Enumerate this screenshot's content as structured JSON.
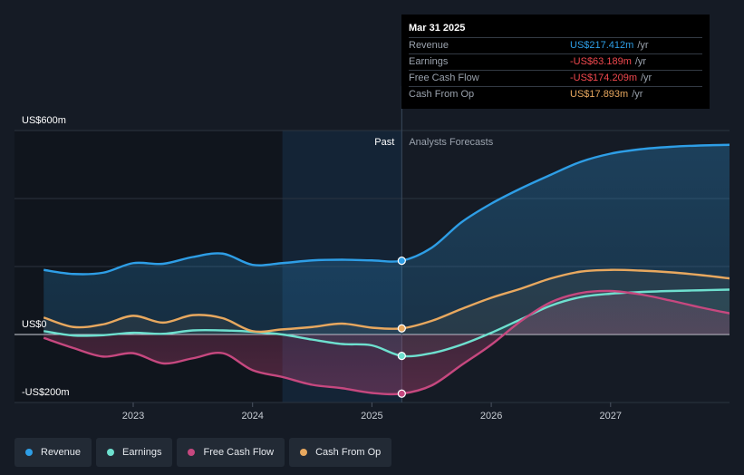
{
  "tooltip": {
    "date": "Mar 31 2025",
    "rows": [
      {
        "label": "Revenue",
        "value": "US$217.412m",
        "unit": "/yr",
        "color": "#2e9ee6"
      },
      {
        "label": "Earnings",
        "value": "-US$63.189m",
        "unit": "/yr",
        "color": "#f0484e"
      },
      {
        "label": "Free Cash Flow",
        "value": "-US$174.209m",
        "unit": "/yr",
        "color": "#f0484e"
      },
      {
        "label": "Cash From Op",
        "value": "US$17.893m",
        "unit": "/yr",
        "color": "#e8a85f"
      }
    ]
  },
  "legend": [
    {
      "label": "Revenue",
      "color": "#2e9ee6"
    },
    {
      "label": "Earnings",
      "color": "#6ee0cf"
    },
    {
      "label": "Free Cash Flow",
      "color": "#c6487f"
    },
    {
      "label": "Cash From Op",
      "color": "#e8a85f"
    }
  ],
  "chart_data": {
    "type": "line",
    "title": "",
    "xlabel": "",
    "ylabel": "",
    "y_tick_labels": [
      {
        "value": 600,
        "label": "US$600m"
      },
      {
        "value": 0,
        "label": "US$0"
      },
      {
        "value": -200,
        "label": "-US$200m"
      }
    ],
    "x_tick_labels": [
      {
        "value": 2023,
        "label": "2023"
      },
      {
        "value": 2024,
        "label": "2024"
      },
      {
        "value": 2025,
        "label": "2025"
      },
      {
        "value": 2026,
        "label": "2026"
      },
      {
        "value": 2027,
        "label": "2027"
      }
    ],
    "xlim": [
      2022.0,
      2028.0
    ],
    "ylim": [
      -200,
      600
    ],
    "gridlines_y": [
      600,
      400,
      200,
      0,
      -200
    ],
    "divider_x": 2025.25,
    "past_label": "Past",
    "forecast_label": "Analysts Forecasts",
    "highlight_start_x": 2024.25,
    "series": [
      {
        "name": "Revenue",
        "color": "#2e9ee6",
        "x": [
          2022.25,
          2022.5,
          2022.75,
          2023.0,
          2023.25,
          2023.5,
          2023.75,
          2024.0,
          2024.25,
          2024.5,
          2024.75,
          2025.0,
          2025.25,
          2025.5,
          2025.75,
          2026.0,
          2026.25,
          2026.5,
          2026.75,
          2027.0,
          2027.25,
          2027.5,
          2027.75,
          2028.0
        ],
        "values": [
          190,
          178,
          182,
          210,
          208,
          228,
          238,
          205,
          210,
          218,
          220,
          218,
          217,
          255,
          330,
          385,
          430,
          470,
          508,
          532,
          545,
          552,
          556,
          558
        ]
      },
      {
        "name": "Earnings",
        "color": "#6ee0cf",
        "x": [
          2022.25,
          2022.5,
          2022.75,
          2023.0,
          2023.25,
          2023.5,
          2023.75,
          2024.0,
          2024.25,
          2024.5,
          2024.75,
          2025.0,
          2025.25,
          2025.5,
          2025.75,
          2026.0,
          2026.25,
          2026.5,
          2026.75,
          2027.0,
          2027.25,
          2027.5,
          2027.75,
          2028.0
        ],
        "values": [
          10,
          -3,
          -2,
          5,
          2,
          12,
          12,
          8,
          0,
          -15,
          -28,
          -32,
          -63,
          -55,
          -30,
          5,
          45,
          85,
          110,
          120,
          125,
          128,
          130,
          132
        ]
      },
      {
        "name": "Free Cash Flow",
        "color": "#c6487f",
        "x": [
          2022.25,
          2022.5,
          2022.75,
          2023.0,
          2023.25,
          2023.5,
          2023.75,
          2024.0,
          2024.25,
          2024.5,
          2024.75,
          2025.0,
          2025.25,
          2025.5,
          2025.75,
          2026.0,
          2026.25,
          2026.5,
          2026.75,
          2027.0,
          2027.25,
          2027.5,
          2027.75,
          2028.0
        ],
        "values": [
          -10,
          -40,
          -65,
          -55,
          -85,
          -70,
          -55,
          -105,
          -125,
          -148,
          -158,
          -172,
          -174,
          -150,
          -90,
          -30,
          40,
          95,
          122,
          128,
          118,
          100,
          80,
          62
        ]
      },
      {
        "name": "Cash From Op",
        "color": "#e8a85f",
        "x": [
          2022.25,
          2022.5,
          2022.75,
          2023.0,
          2023.25,
          2023.5,
          2023.75,
          2024.0,
          2024.25,
          2024.5,
          2024.75,
          2025.0,
          2025.25,
          2025.5,
          2025.75,
          2026.0,
          2026.25,
          2026.5,
          2026.75,
          2027.0,
          2027.25,
          2027.5,
          2027.75,
          2028.0
        ],
        "values": [
          50,
          22,
          30,
          55,
          35,
          57,
          48,
          10,
          15,
          22,
          32,
          20,
          18,
          40,
          75,
          108,
          135,
          165,
          185,
          190,
          188,
          183,
          175,
          165
        ]
      }
    ],
    "markers_x": 2025.25,
    "legend_position": "bottom-left"
  }
}
